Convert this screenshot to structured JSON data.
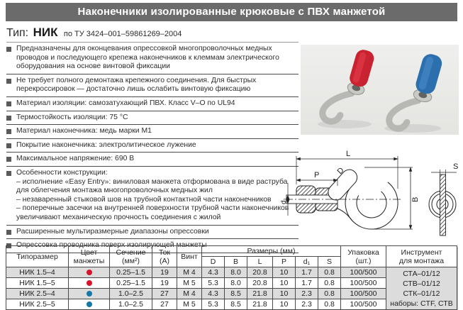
{
  "page": {
    "title": "Наконечники изолированные крюковые с ПВХ манжетой"
  },
  "type_line": {
    "prefix": "Тип:",
    "type": "НИК",
    "spec": "по ТУ 3424–001–59861269–2004"
  },
  "features": [
    {
      "text": "Предназначены для оконцевания опрессовкой многопроволочных медных проводов и последующего крепежа наконечников к клеммам электрического оборудования на основе винтовой фиксации"
    },
    {
      "text": "Не требует полного демонтажа крепежного соединения. Для быстрых перекроссировок — достаточно лишь ослабить винтовую фиксацию"
    },
    {
      "text": "Материал изоляции: самозатухающий ПВХ. Класс V–O по UL94"
    },
    {
      "text": "Термостойкость изоляции: 75 °С"
    },
    {
      "text": "Материал наконечника: медь марки М1"
    },
    {
      "text": "Покрытие наконечника: электролитическое лужение"
    },
    {
      "text": "Максимальное напряжение: 690 В"
    },
    {
      "text": "Особенности конструкции:",
      "sub": [
        "– исполнение «Easy Entry»: виниловая манжета отформована в виде раструба для облегчения монтажа многопроволочных медных жил",
        "– незаваренный стыковой шов на трубной контактной части наконечников",
        "– поперечные засечки на внутренней поверхности трубной части наконечников увеличивают механическую прочность соединения с жилой"
      ]
    },
    {
      "text": "Расширенные мультиразмерные диапазоны опрессовки"
    },
    {
      "text": "Опрессовка проводника поверх изолирующей манжеты"
    }
  ],
  "diagram": {
    "labels": {
      "L": "L",
      "P": "P",
      "D": "D",
      "B": "B",
      "d1": "d₁",
      "S": "S"
    }
  },
  "table": {
    "headers": {
      "size": "Типоразмер",
      "cuff": "Цвет\nманжеты",
      "section": "Сечение\n(мм²)",
      "current": "Ток\n(А)",
      "screw": "Винт",
      "sizes_group": "Размеры (мм)",
      "size_cols": [
        "D",
        "B",
        "L",
        "P",
        "d₁",
        "S"
      ],
      "pack": "Упаковка\n(шт.)",
      "tool": "Инструмент\nдля монтажа"
    },
    "rows": [
      {
        "size": "НИК 1.5–4",
        "cuff_color": "red",
        "section": "0.25–1.5",
        "current": "19",
        "screw": "М 4",
        "D": "4.3",
        "B": "8.0",
        "L": "20.8",
        "P": "10",
        "d1": "1.7",
        "S": "0.8",
        "pack": "100/500",
        "tool": "СТА–01/12",
        "shaded": true
      },
      {
        "size": "НИК 1.5–5",
        "cuff_color": "red",
        "section": "0.25–1.5",
        "current": "19",
        "screw": "М 5",
        "D": "5.3",
        "B": "8.0",
        "L": "20.8",
        "P": "10",
        "d1": "1.7",
        "S": "0.8",
        "pack": "100/500",
        "tool": "СТВ–01/12",
        "shaded": false
      },
      {
        "size": "НИК 2.5–4",
        "cuff_color": "blue",
        "section": "1.0–2.5",
        "current": "27",
        "screw": "М 4",
        "D": "4.3",
        "B": "8.5",
        "L": "21.8",
        "P": "10",
        "d1": "2.3",
        "S": "0.8",
        "pack": "100/500",
        "tool": "СТК–01/12",
        "shaded": true
      },
      {
        "size": "НИК 2.5–5",
        "cuff_color": "blue",
        "section": "1.0–2.5",
        "current": "27",
        "screw": "М 5",
        "D": "5.3",
        "B": "8.5",
        "L": "21.8",
        "P": "10",
        "d1": "2.3",
        "S": "0.8",
        "pack": "100/500",
        "tool": "наборы: CTF, СТВ",
        "shaded": false
      }
    ]
  },
  "colors": {
    "header_bar": "#6b6b6b",
    "row_shade": "#dcdcdc",
    "red_cuff": "#d8142a",
    "blue_cuff": "#1678a6",
    "photo_red": "#c92231",
    "photo_blue": "#2b6fae"
  }
}
